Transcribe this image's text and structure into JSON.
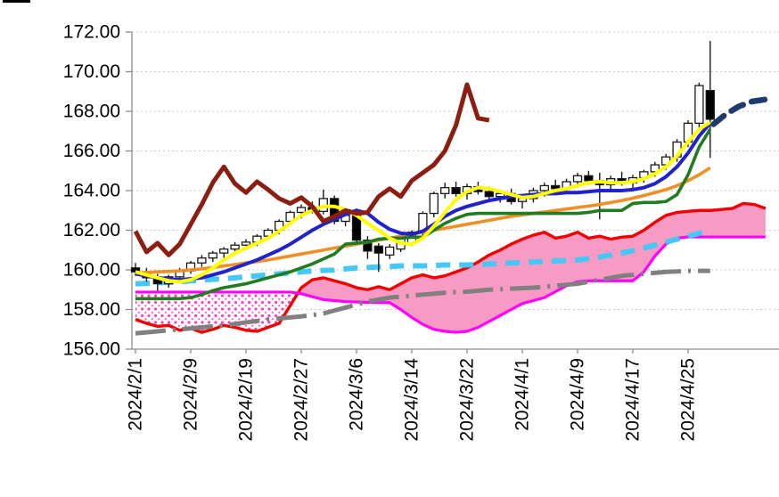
{
  "chart_data": {
    "type": "candlestick",
    "title": "",
    "legend": "none",
    "grid": "horizontal-dotted",
    "y_axis": {
      "tick_labels": [
        "172.00",
        "170.00",
        "168.00",
        "166.00",
        "164.00",
        "162.00",
        "160.00",
        "158.00",
        "156.00"
      ],
      "min": 156,
      "max": 172,
      "step": 2
    },
    "x_axis": {
      "tick_labels": [
        "2024/2/1",
        "2024/2/9",
        "2024/2/19",
        "2024/2/27",
        "2024/3/6",
        "2024/3/14",
        "2024/3/22",
        "2024/4/1",
        "2024/4/9",
        "2024/4/17",
        "2024/4/25"
      ],
      "label_interval": 5,
      "total_candles": 53
    },
    "candles": {
      "up_fill": "#ffffff",
      "down_fill": "#000000",
      "border": "#1a1a1a",
      "ohlc": [
        [
          160.1,
          160.35,
          159.7,
          159.9
        ],
        [
          159.9,
          160.1,
          159.4,
          159.6
        ],
        [
          159.6,
          159.8,
          158.95,
          159.3
        ],
        [
          159.3,
          159.75,
          159.1,
          159.65
        ],
        [
          159.65,
          160.1,
          159.45,
          159.95
        ],
        [
          159.95,
          160.45,
          159.8,
          160.35
        ],
        [
          160.35,
          160.75,
          160.15,
          160.6
        ],
        [
          160.6,
          160.95,
          160.4,
          160.85
        ],
        [
          160.85,
          161.15,
          160.6,
          161.05
        ],
        [
          161.05,
          161.4,
          160.85,
          161.25
        ],
        [
          161.25,
          161.55,
          161.0,
          161.4
        ],
        [
          161.4,
          161.8,
          161.2,
          161.7
        ],
        [
          161.7,
          162.1,
          161.5,
          162.0
        ],
        [
          162.0,
          162.55,
          161.8,
          162.45
        ],
        [
          162.45,
          163.0,
          162.25,
          162.9
        ],
        [
          162.9,
          163.3,
          162.6,
          163.15
        ],
        [
          163.15,
          163.45,
          162.85,
          162.95
        ],
        [
          162.95,
          164.05,
          162.8,
          163.6
        ],
        [
          163.6,
          163.75,
          162.3,
          162.45
        ],
        [
          162.45,
          162.9,
          162.2,
          162.75
        ],
        [
          163.0,
          163.1,
          161.4,
          161.5
        ],
        [
          161.5,
          161.7,
          160.55,
          160.95
        ],
        [
          161.2,
          161.35,
          159.9,
          160.85
        ],
        [
          160.75,
          161.3,
          160.55,
          161.15
        ],
        [
          161.05,
          161.75,
          160.9,
          161.6
        ],
        [
          161.35,
          162.0,
          161.2,
          161.9
        ],
        [
          161.85,
          162.95,
          161.7,
          162.85
        ],
        [
          162.85,
          163.95,
          162.65,
          163.85
        ],
        [
          163.85,
          164.4,
          163.6,
          164.15
        ],
        [
          164.15,
          164.45,
          163.7,
          163.85
        ],
        [
          163.85,
          164.35,
          163.55,
          164.2
        ],
        [
          164.2,
          164.45,
          163.8,
          163.95
        ],
        [
          163.95,
          164.2,
          163.55,
          163.7
        ],
        [
          163.7,
          164.0,
          163.4,
          163.85
        ],
        [
          163.85,
          164.1,
          163.3,
          163.45
        ],
        [
          163.45,
          163.75,
          163.1,
          163.6
        ],
        [
          163.6,
          164.15,
          163.4,
          164.0
        ],
        [
          164.0,
          164.4,
          163.7,
          164.25
        ],
        [
          164.25,
          164.55,
          163.9,
          164.1
        ],
        [
          164.1,
          164.6,
          163.85,
          164.45
        ],
        [
          164.45,
          164.9,
          164.15,
          164.75
        ],
        [
          164.75,
          165.0,
          164.3,
          164.5
        ],
        [
          164.5,
          164.9,
          162.55,
          164.3
        ],
        [
          164.3,
          164.75,
          163.95,
          164.6
        ],
        [
          164.6,
          164.95,
          164.25,
          164.4
        ],
        [
          164.4,
          164.8,
          164.1,
          164.65
        ],
        [
          164.65,
          165.05,
          164.4,
          164.95
        ],
        [
          164.95,
          165.45,
          164.7,
          165.3
        ],
        [
          165.3,
          165.85,
          165.05,
          165.7
        ],
        [
          165.7,
          166.6,
          165.45,
          166.45
        ],
        [
          166.45,
          167.55,
          166.2,
          167.4
        ],
        [
          167.4,
          169.45,
          167.15,
          169.3
        ],
        [
          169.05,
          171.55,
          165.65,
          167.6
        ]
      ]
    },
    "series": [
      {
        "name": "lagging-close-line",
        "color": "#8b1e10",
        "width": 5,
        "dash": "solid",
        "start": 0,
        "values": [
          161.95,
          160.9,
          161.35,
          160.75,
          161.3,
          162.3,
          163.3,
          164.4,
          165.2,
          164.35,
          163.9,
          164.45,
          164.05,
          163.6,
          163.35,
          163.65,
          163.2,
          162.45,
          162.7,
          163.0,
          162.85,
          162.9,
          163.7,
          164.1,
          163.7,
          164.5,
          164.9,
          165.3,
          166.0,
          167.3,
          169.35,
          167.65,
          167.55
        ]
      },
      {
        "name": "ma-short-yellow",
        "color": "#ffff00",
        "width": 4,
        "dash": "solid",
        "start": 0,
        "values": [
          159.9,
          159.75,
          159.6,
          159.45,
          159.4,
          159.5,
          159.75,
          160.1,
          160.5,
          160.85,
          161.1,
          161.35,
          161.6,
          161.95,
          162.35,
          162.75,
          163.0,
          163.2,
          163.2,
          163.05,
          162.75,
          162.35,
          162.0,
          161.6,
          161.35,
          161.3,
          161.6,
          162.2,
          162.9,
          163.55,
          163.95,
          164.15,
          164.1,
          163.95,
          163.8,
          163.65,
          163.7,
          163.85,
          164.0,
          164.1,
          164.25,
          164.4,
          164.45,
          164.4,
          164.4,
          164.45,
          164.6,
          164.85,
          165.2,
          165.75,
          166.45,
          167.1,
          167.45
        ]
      },
      {
        "name": "ma-mid-blue",
        "color": "#2222cc",
        "width": 4,
        "dash": "solid",
        "start": 0,
        "values": [
          159.8,
          159.7,
          159.6,
          159.55,
          159.5,
          159.55,
          159.6,
          159.75,
          159.9,
          160.1,
          160.3,
          160.5,
          160.75,
          161.0,
          161.3,
          161.65,
          162.0,
          162.3,
          162.55,
          162.8,
          163.0,
          162.85,
          162.4,
          162.05,
          161.85,
          161.8,
          161.95,
          162.3,
          162.7,
          163.0,
          163.2,
          163.35,
          163.5,
          163.6,
          163.7,
          163.75,
          163.8,
          163.85,
          163.85,
          163.9,
          163.9,
          163.95,
          164.0,
          164.0,
          164.0,
          164.05,
          164.15,
          164.35,
          164.7,
          165.2,
          165.9,
          166.75,
          167.4
        ]
      },
      {
        "name": "baseline-green",
        "color": "#217c21",
        "width": 3.6,
        "dash": "solid",
        "start": 0,
        "values": [
          158.55,
          158.55,
          158.55,
          158.55,
          158.55,
          158.6,
          158.75,
          158.95,
          159.1,
          159.2,
          159.3,
          159.45,
          159.6,
          159.75,
          159.9,
          160.1,
          160.3,
          160.55,
          160.8,
          161.3,
          161.35,
          161.4,
          161.55,
          161.6,
          161.6,
          161.65,
          161.65,
          162.0,
          162.35,
          162.6,
          162.8,
          162.85,
          162.85,
          162.85,
          162.85,
          162.85,
          162.85,
          162.85,
          162.85,
          162.85,
          162.85,
          162.9,
          163.0,
          163.0,
          163.0,
          163.35,
          163.4,
          163.4,
          163.45,
          163.8,
          164.8,
          166.2,
          167.1
        ]
      },
      {
        "name": "ma-long-orange",
        "color": "#ef8f25",
        "width": 3.6,
        "dash": "solid",
        "start": 0,
        "values": [
          159.85,
          159.87,
          159.9,
          159.92,
          159.95,
          160.0,
          160.05,
          160.12,
          160.2,
          160.27,
          160.35,
          160.42,
          160.5,
          160.6,
          160.7,
          160.8,
          160.9,
          161.0,
          161.1,
          161.2,
          161.3,
          161.4,
          161.5,
          161.6,
          161.7,
          161.8,
          161.9,
          162.0,
          162.1,
          162.2,
          162.3,
          162.4,
          162.5,
          162.6,
          162.7,
          162.77,
          162.85,
          162.92,
          163.0,
          163.07,
          163.15,
          163.22,
          163.3,
          163.4,
          163.5,
          163.62,
          163.75,
          163.9,
          164.05,
          164.25,
          164.5,
          164.8,
          165.15
        ]
      },
      {
        "name": "trend-cyan-dashed",
        "color": "#45c8f5",
        "width": 6,
        "dash": "dashed",
        "start": 0,
        "values": [
          159.3,
          159.32,
          159.35,
          159.37,
          159.4,
          159.45,
          159.5,
          159.52,
          159.55,
          159.6,
          159.65,
          159.7,
          159.75,
          159.8,
          159.85,
          159.9,
          159.95,
          159.97,
          160.0,
          160.05,
          160.1,
          160.12,
          160.15,
          160.17,
          160.2,
          160.2,
          160.2,
          160.22,
          160.25,
          160.25,
          160.25,
          160.27,
          160.3,
          160.32,
          160.35,
          160.37,
          160.4,
          160.42,
          160.45,
          160.47,
          160.5,
          160.57,
          160.65,
          160.75,
          160.85,
          160.97,
          161.1,
          161.25,
          161.4,
          161.55,
          161.7,
          161.85,
          161.95
        ]
      },
      {
        "name": "trend-gray-dashdot",
        "color": "#808080",
        "width": 5,
        "dash": "dashdot",
        "start": 0,
        "values": [
          156.8,
          156.85,
          156.9,
          156.95,
          157.0,
          157.05,
          157.1,
          157.15,
          157.2,
          157.27,
          157.35,
          157.42,
          157.5,
          157.55,
          157.6,
          157.65,
          157.72,
          157.8,
          157.95,
          158.1,
          158.25,
          158.4,
          158.5,
          158.6,
          158.65,
          158.7,
          158.75,
          158.8,
          158.85,
          158.88,
          158.9,
          158.95,
          159.0,
          159.02,
          159.05,
          159.08,
          159.1,
          159.15,
          159.2,
          159.25,
          159.3,
          159.4,
          159.5,
          159.6,
          159.7,
          159.75,
          159.8,
          159.85,
          159.9,
          159.92,
          159.95,
          159.95,
          159.95
        ]
      }
    ],
    "forecast_navy_dashed": {
      "name": "forecast-navy-dashed",
      "color": "#1f3a6e",
      "width": 6.5,
      "dash": "dashed",
      "points": [
        [
          52.3,
          167.35
        ],
        [
          53.4,
          167.85
        ],
        [
          54.6,
          168.25
        ],
        [
          55.8,
          168.5
        ],
        [
          57.0,
          168.6
        ]
      ]
    },
    "cloud": {
      "span_a_red_color": "#f20000",
      "span_b_magenta_color": "#ff00ff",
      "solid_fill": "#f79ac4",
      "dotted_fill_dot_color": "#ff3dcc",
      "span_a_red": [
        157.5,
        157.3,
        157.15,
        157.2,
        156.95,
        157.05,
        156.85,
        157.0,
        157.2,
        157.1,
        156.95,
        156.9,
        157.1,
        157.3,
        158.2,
        159.1,
        159.5,
        159.6,
        159.45,
        159.3,
        159.1,
        159.0,
        159.15,
        159.0,
        159.3,
        159.6,
        159.75,
        159.6,
        159.7,
        159.9,
        160.1,
        160.4,
        160.75,
        161.0,
        161.3,
        161.55,
        161.75,
        161.9,
        161.6,
        161.7,
        161.9,
        161.6,
        161.7,
        161.55,
        161.65,
        161.7,
        162.0,
        162.4,
        162.75,
        162.9,
        162.95,
        163.0,
        163.0,
        163.05,
        163.1,
        163.35,
        163.3,
        163.1
      ],
      "span_b_magenta": [
        158.88,
        158.88,
        158.88,
        158.88,
        158.88,
        158.88,
        158.88,
        158.88,
        158.88,
        158.88,
        158.88,
        158.88,
        158.88,
        158.88,
        158.88,
        158.8,
        158.65,
        158.5,
        158.45,
        158.4,
        158.38,
        158.36,
        158.35,
        158.35,
        158.0,
        157.6,
        157.25,
        157.0,
        156.9,
        156.85,
        156.9,
        157.1,
        157.4,
        157.7,
        158.0,
        158.3,
        158.45,
        158.6,
        158.9,
        159.2,
        159.4,
        159.45,
        159.45,
        159.45,
        159.45,
        159.45,
        159.9,
        160.7,
        161.3,
        161.6,
        161.66,
        161.66,
        161.66,
        161.66,
        161.66,
        161.66,
        161.66,
        161.66
      ]
    },
    "colors": {
      "grid": "#c9c9c9",
      "axis": "#8c8c8c",
      "text": "#000000",
      "background": "#ffffff"
    }
  }
}
